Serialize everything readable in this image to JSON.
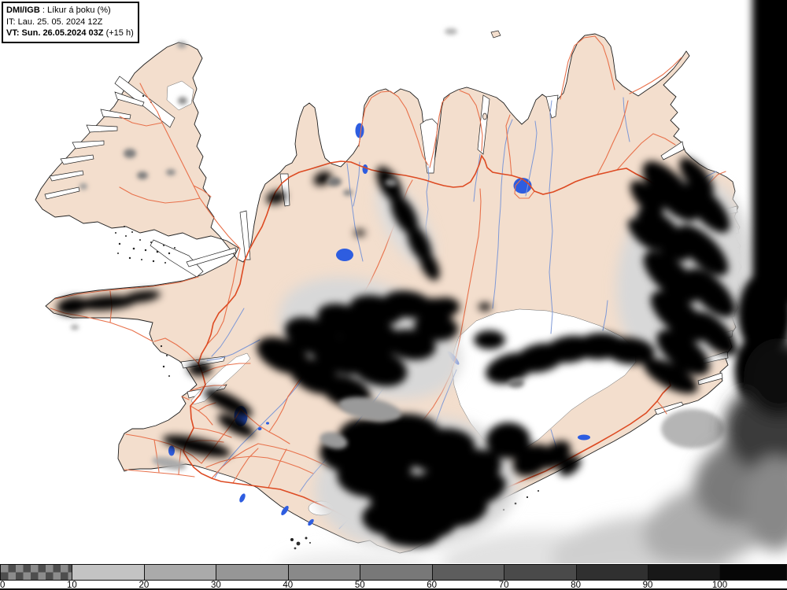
{
  "legend": {
    "line1_bold": "DMI/IGB",
    "line1_rest": " : Líkur á þoku (%)",
    "line2": "IT: Lau. 25. 05. 2024 12Z",
    "line3_bold": "VT: Sun. 26.05.2024 03Z",
    "line3_rest": " (+15 h)"
  },
  "colorbar": {
    "labels": [
      "0",
      "10",
      "20",
      "30",
      "40",
      "50",
      "60",
      "70",
      "80",
      "90",
      "100"
    ],
    "segments": [
      {
        "range": "0-10",
        "pattern": "checker",
        "colors": [
          "#4e4e4e",
          "#8c8c8c"
        ]
      },
      {
        "range": "10-20",
        "color": "#c3c3c3"
      },
      {
        "range": "20-30",
        "color": "#aaaaaa"
      },
      {
        "range": "30-40",
        "color": "#969696"
      },
      {
        "range": "40-50",
        "color": "#898989"
      },
      {
        "range": "50-60",
        "color": "#787878"
      },
      {
        "range": "60-70",
        "color": "#5d5d5d"
      },
      {
        "range": "70-80",
        "color": "#4a4a4a"
      },
      {
        "range": "80-90",
        "color": "#303030"
      },
      {
        "range": "90-100",
        "color": "#181818"
      },
      {
        "range": "100+",
        "color": "#060606"
      }
    ]
  },
  "map": {
    "region": "Iceland",
    "product": "Fog probability (%)",
    "model_run": "2024-05-25 12Z",
    "valid_time": "2024-05-26 03Z (+15 h)",
    "colors": {
      "land": "#f3decd",
      "sea": "#ffffff",
      "coast": "#1f1f1f",
      "glacier": "#ffffff",
      "glacier_edge": "#6a6a6a",
      "lake": "#2e5de0",
      "river": "#7e98d6",
      "road_primary": "#dd4a22",
      "road_secondary": "#e8714b",
      "fog_high": "#060606",
      "fog_mid": "#8a8a8a",
      "fog_halo": "#d8d8d8"
    },
    "features": [
      "coastline",
      "fjords",
      "glaciers",
      "lakes",
      "rivers",
      "road-network",
      "fog-probability-shading",
      "offshore-fog-bank-east"
    ]
  }
}
